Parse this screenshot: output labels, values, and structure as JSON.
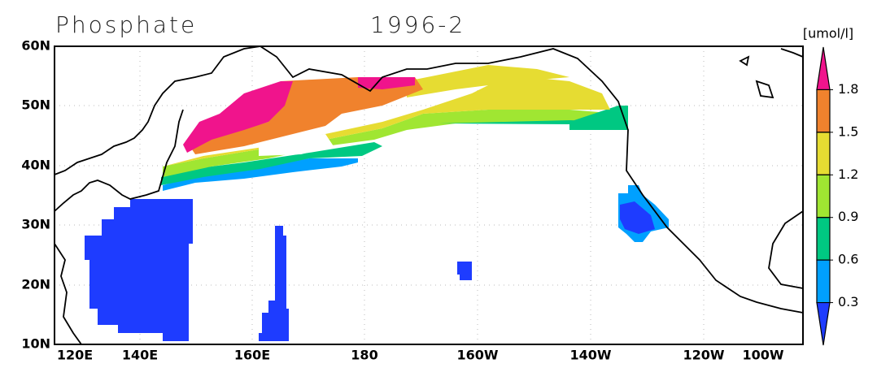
{
  "map": {
    "title": "Phosphate",
    "period": "1996-2",
    "unit": "[umol/l]",
    "lon_labels": [
      "120E",
      "140E",
      "160E",
      "180",
      "160W",
      "140W",
      "120W",
      "100W"
    ],
    "lat_labels": [
      "60N",
      "50N",
      "40N",
      "30N",
      "20N",
      "10N"
    ],
    "colorbar": {
      "levels": [
        1.8,
        1.5,
        1.2,
        0.9,
        0.6,
        0.3
      ],
      "colors": [
        "#f0148c",
        "#f0822d",
        "#e6dc32",
        "#a0e632",
        "#00c882",
        "#00a0ff",
        "#1e3cff"
      ]
    }
  }
}
